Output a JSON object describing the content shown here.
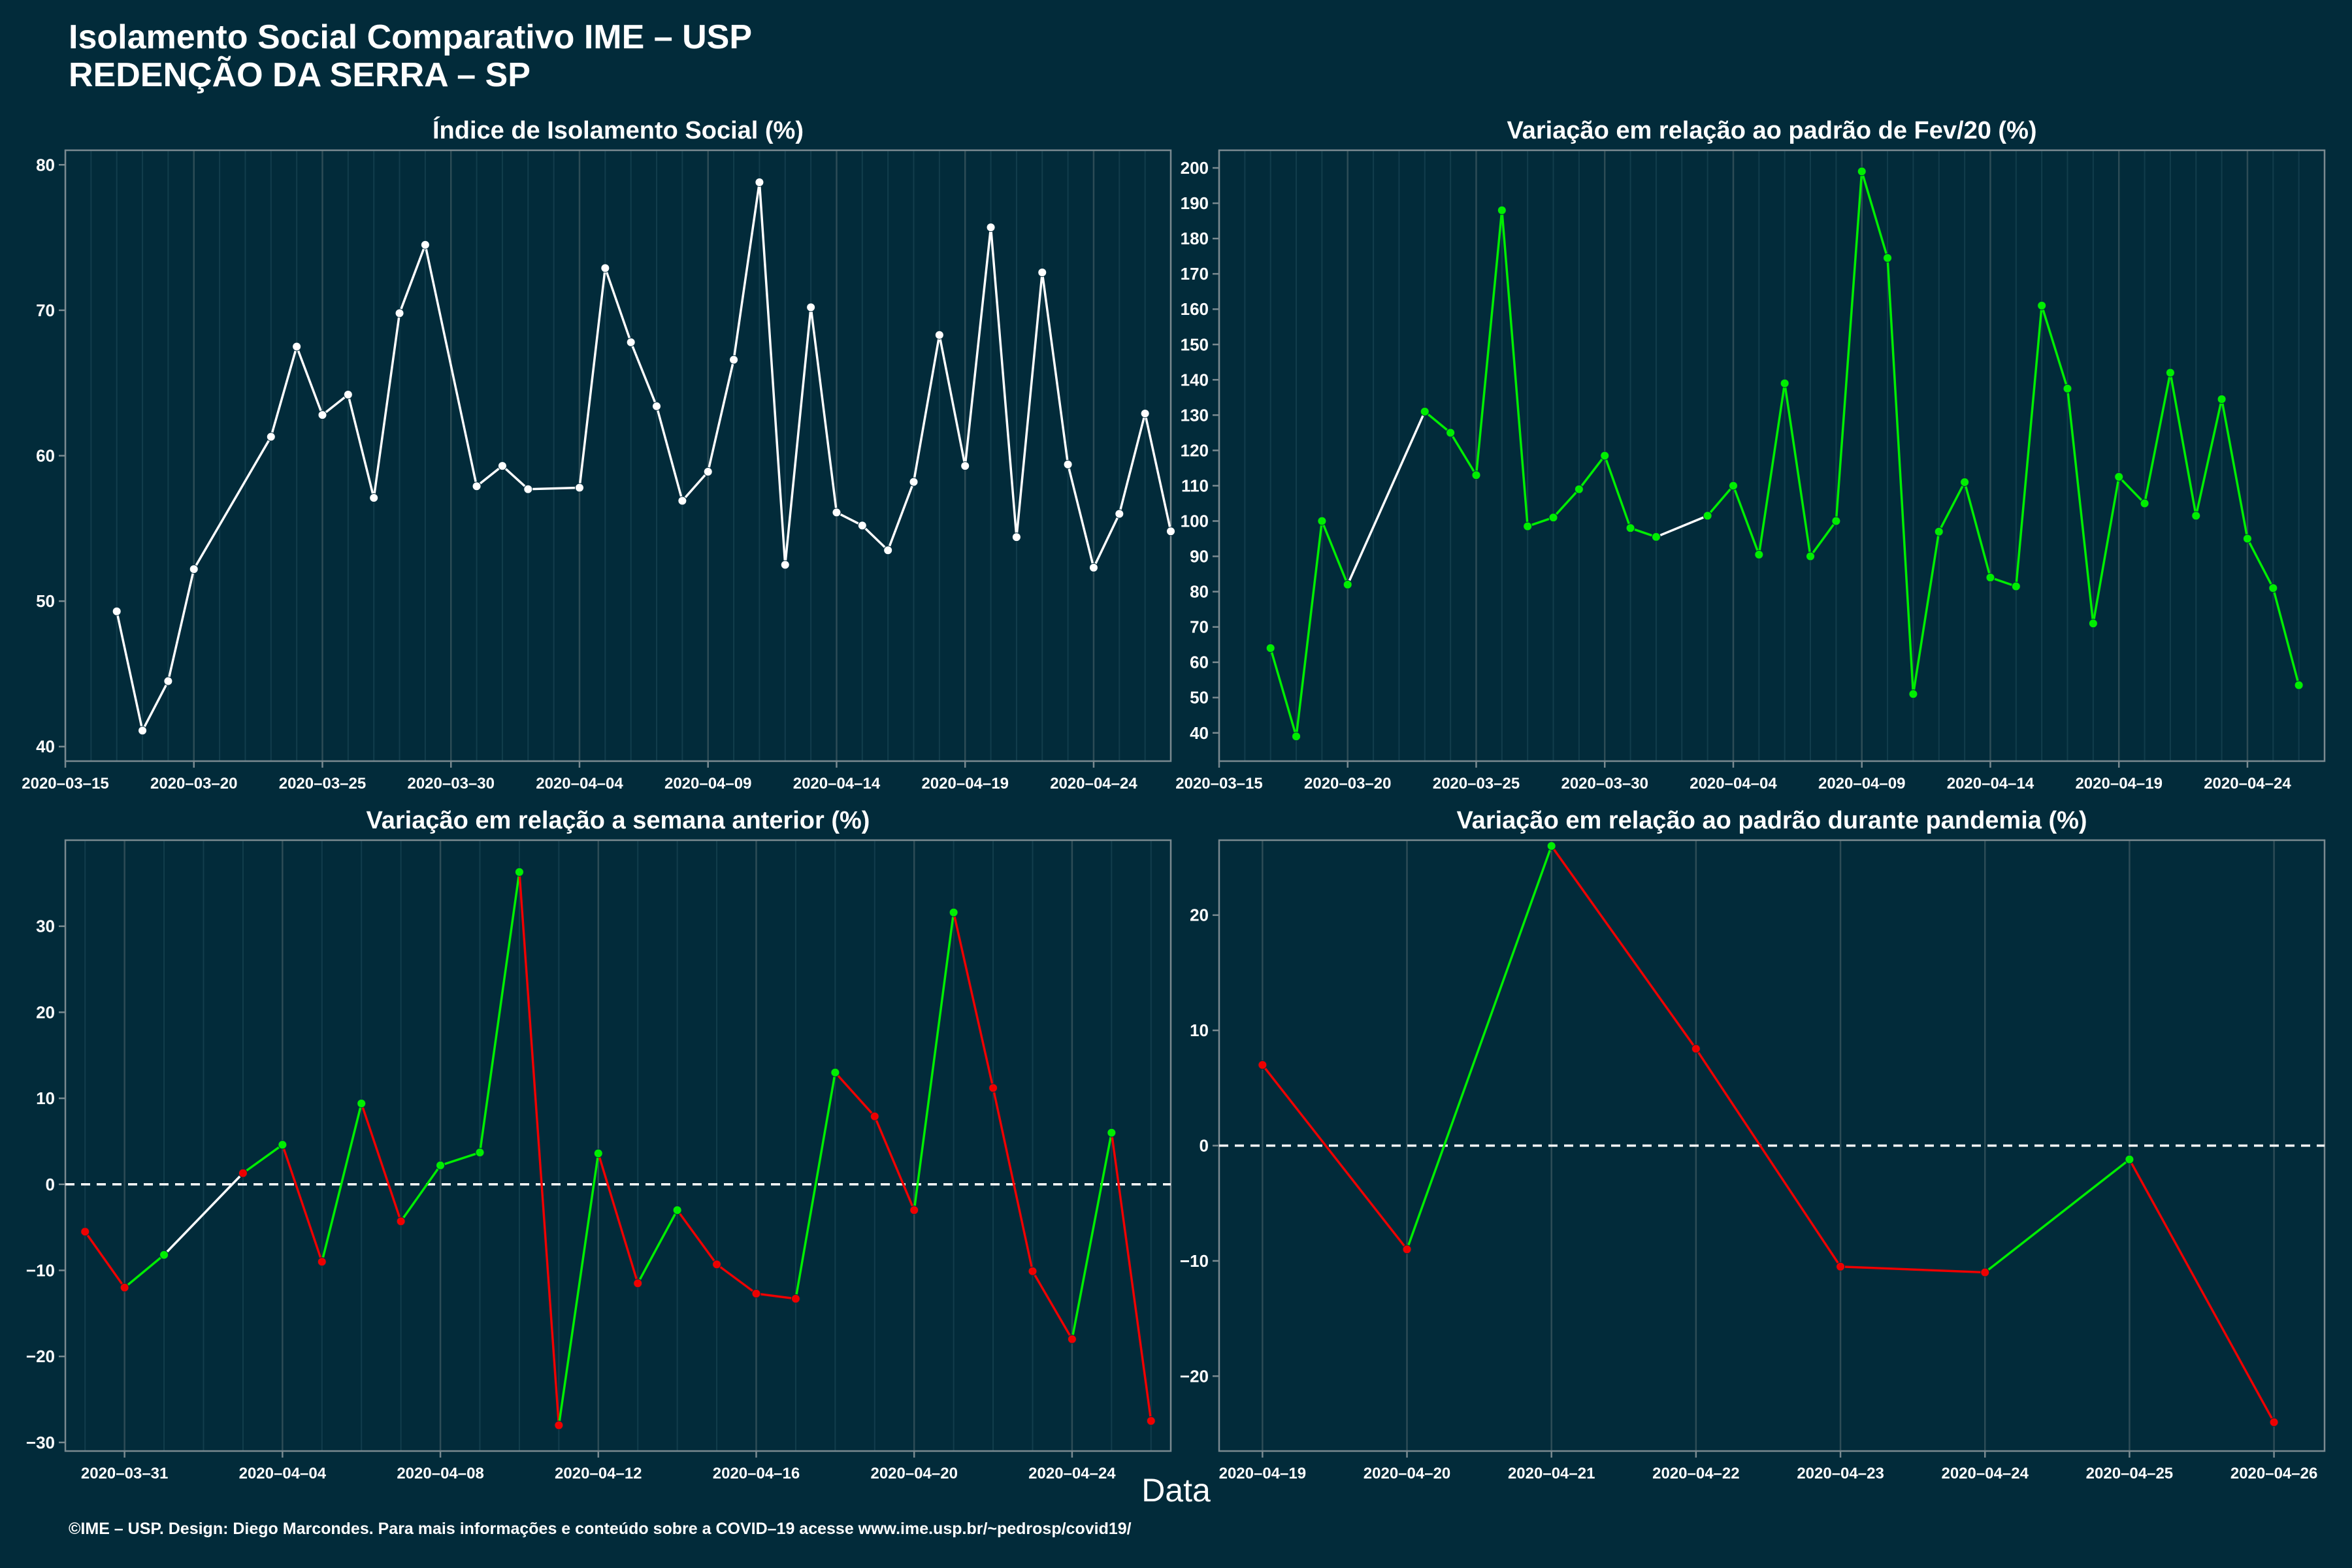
{
  "title": {
    "line1": "Isolamento Social Comparativo IME – USP",
    "line2": "REDENÇÃO DA SERRA – SP"
  },
  "footer": "©IME – USP. Design: Diego Marcondes. Para mais informações e conteúdo sobre a COVID–19 acesse www.ime.usp.br/~pedrosp/covid19/",
  "xlabel": "Data",
  "colors": {
    "background": "#022b3a",
    "white": "#ffffff",
    "green": "#00ee00",
    "red": "#ee0000",
    "grid": "#2d4c56"
  },
  "chart_data": [
    {
      "type": "line",
      "title": "Índice de Isolamento Social (%)",
      "xlim": [
        "2020-03-15",
        "2020-04-27"
      ],
      "ylim": [
        39,
        81
      ],
      "yticks": [
        40,
        50,
        60,
        70,
        80
      ],
      "xticks": [
        "2020-03-15",
        "2020-03-20",
        "2020-03-25",
        "2020-03-30",
        "2020-04-04",
        "2020-04-09",
        "2020-04-14",
        "2020-04-19",
        "2020-04-24"
      ],
      "color_mode": "white",
      "series": [
        {
          "points": [
            [
              "2020-03-17",
              49.3
            ],
            [
              "2020-03-18",
              41.1
            ],
            [
              "2020-03-19",
              44.5
            ],
            [
              "2020-03-20",
              52.2
            ],
            [
              "2020-03-23",
              61.3
            ],
            [
              "2020-03-24",
              67.5
            ],
            [
              "2020-03-25",
              62.8
            ],
            [
              "2020-03-26",
              64.2
            ],
            [
              "2020-03-27",
              57.1
            ],
            [
              "2020-03-28",
              69.8
            ],
            [
              "2020-03-29",
              74.5
            ],
            [
              "2020-03-31",
              57.9
            ],
            [
              "2020-04-01",
              59.3
            ],
            [
              "2020-04-02",
              57.7
            ],
            [
              "2020-04-04",
              57.8
            ],
            [
              "2020-04-05",
              72.9
            ],
            [
              "2020-04-06",
              67.8
            ],
            [
              "2020-04-07",
              63.4
            ],
            [
              "2020-04-08",
              56.9
            ],
            [
              "2020-04-09",
              58.9
            ],
            [
              "2020-04-10",
              66.6
            ],
            [
              "2020-04-11",
              78.8
            ],
            [
              "2020-04-12",
              52.5
            ],
            [
              "2020-04-13",
              70.2
            ],
            [
              "2020-04-14",
              56.1
            ],
            [
              "2020-04-15",
              55.2
            ],
            [
              "2020-04-16",
              53.5
            ],
            [
              "2020-04-17",
              58.2
            ],
            [
              "2020-04-18",
              68.3
            ],
            [
              "2020-04-19",
              59.3
            ],
            [
              "2020-04-20",
              75.7
            ],
            [
              "2020-04-21",
              54.4
            ],
            [
              "2020-04-22",
              72.6
            ],
            [
              "2020-04-23",
              59.4
            ],
            [
              "2020-04-24",
              52.3
            ],
            [
              "2020-04-25",
              56.0
            ],
            [
              "2020-04-26",
              62.9
            ],
            [
              "2020-04-27",
              54.8
            ]
          ]
        }
      ]
    },
    {
      "type": "line",
      "title": "Variação em relação ao padrão de Fev/20 (%)",
      "xlim": [
        "2020-03-15",
        "2020-04-27"
      ],
      "ylim": [
        32,
        205
      ],
      "yticks": [
        40,
        50,
        60,
        70,
        80,
        90,
        100,
        110,
        120,
        130,
        140,
        150,
        160,
        170,
        180,
        190,
        200
      ],
      "xticks": [
        "2020-03-15",
        "2020-03-20",
        "2020-03-25",
        "2020-03-30",
        "2020-04-04",
        "2020-04-09",
        "2020-04-14",
        "2020-04-19",
        "2020-04-24"
      ],
      "color_mode": "green",
      "series": [
        {
          "points": [
            [
              "2020-03-17",
              64
            ],
            [
              "2020-03-18",
              39
            ],
            [
              "2020-03-19",
              100
            ],
            [
              "2020-03-20",
              82
            ],
            [
              "2020-03-23",
              131
            ],
            [
              "2020-03-24",
              125
            ],
            [
              "2020-03-25",
              113
            ],
            [
              "2020-03-26",
              188
            ],
            [
              "2020-03-27",
              98.5
            ],
            [
              "2020-03-28",
              101
            ],
            [
              "2020-03-29",
              109
            ],
            [
              "2020-03-30",
              118.5
            ],
            [
              "2020-03-31",
              98
            ],
            [
              "2020-04-01",
              95.5
            ],
            [
              "2020-04-03",
              101.5
            ],
            [
              "2020-04-04",
              110
            ],
            [
              "2020-04-05",
              90.5
            ],
            [
              "2020-04-06",
              139
            ],
            [
              "2020-04-07",
              90
            ],
            [
              "2020-04-08",
              100
            ],
            [
              "2020-04-09",
              199
            ],
            [
              "2020-04-10",
              174.5
            ],
            [
              "2020-04-11",
              51
            ],
            [
              "2020-04-12",
              97
            ],
            [
              "2020-04-13",
              111
            ],
            [
              "2020-04-14",
              84
            ],
            [
              "2020-04-15",
              81.5
            ],
            [
              "2020-04-16",
              161
            ],
            [
              "2020-04-17",
              137.5
            ],
            [
              "2020-04-18",
              71
            ],
            [
              "2020-04-19",
              112.5
            ],
            [
              "2020-04-20",
              105
            ],
            [
              "2020-04-21",
              142
            ],
            [
              "2020-04-22",
              101.5
            ],
            [
              "2020-04-23",
              134.5
            ],
            [
              "2020-04-24",
              95
            ],
            [
              "2020-04-25",
              81
            ],
            [
              "2020-04-26",
              53.5
            ]
          ]
        }
      ]
    },
    {
      "type": "line",
      "title": "Variação em relação a semana anterior (%)",
      "xlim": [
        "2020-03-29.5",
        "2020-04-26.5"
      ],
      "ylim": [
        -31,
        40
      ],
      "yticks": [
        -30,
        -20,
        -10,
        0,
        10,
        20,
        30
      ],
      "xticks": [
        "2020-03-31",
        "2020-04-04",
        "2020-04-08",
        "2020-04-12",
        "2020-04-16",
        "2020-04-20",
        "2020-04-24"
      ],
      "zero_line": true,
      "color_mode": "sign",
      "series": [
        {
          "points": [
            [
              "2020-03-30",
              -5.5
            ],
            [
              "2020-03-31",
              -12
            ],
            [
              "2020-04-01",
              -8.2
            ],
            [
              "2020-04-03",
              1.3
            ],
            [
              "2020-04-04",
              4.6
            ],
            [
              "2020-04-05",
              -9
            ],
            [
              "2020-04-06",
              9.4
            ],
            [
              "2020-04-07",
              -4.3
            ],
            [
              "2020-04-08",
              2.2
            ],
            [
              "2020-04-09",
              3.7
            ],
            [
              "2020-04-10",
              36.3
            ],
            [
              "2020-04-11",
              -28
            ],
            [
              "2020-04-12",
              3.6
            ],
            [
              "2020-04-13",
              -11.5
            ],
            [
              "2020-04-14",
              -3
            ],
            [
              "2020-04-15",
              -9.3
            ],
            [
              "2020-04-16",
              -12.7
            ],
            [
              "2020-04-17",
              -13.3
            ],
            [
              "2020-04-18",
              13
            ],
            [
              "2020-04-19",
              7.9
            ],
            [
              "2020-04-20",
              -3
            ],
            [
              "2020-04-21",
              31.6
            ],
            [
              "2020-04-22",
              11.2
            ],
            [
              "2020-04-23",
              -10.1
            ],
            [
              "2020-04-24",
              -18
            ],
            [
              "2020-04-25",
              6
            ],
            [
              "2020-04-26",
              -27.5
            ]
          ]
        }
      ]
    },
    {
      "type": "line",
      "title": "Variação em relação ao padrão durante pandemia (%)",
      "xlim": [
        "2020-04-18.7",
        "2020-04-26.35"
      ],
      "ylim": [
        -26.5,
        26.5
      ],
      "yticks": [
        -20,
        -10,
        0,
        10,
        20
      ],
      "xticks": [
        "2020-04-19",
        "2020-04-20",
        "2020-04-21",
        "2020-04-22",
        "2020-04-23",
        "2020-04-24",
        "2020-04-25",
        "2020-04-26"
      ],
      "zero_line": true,
      "color_mode": "sign",
      "series": [
        {
          "points": [
            [
              "2020-04-19",
              7
            ],
            [
              "2020-04-20",
              -9
            ],
            [
              "2020-04-21",
              26
            ],
            [
              "2020-04-22",
              8.4
            ],
            [
              "2020-04-23",
              -10.5
            ],
            [
              "2020-04-24",
              -11
            ],
            [
              "2020-04-25",
              -1.2
            ],
            [
              "2020-04-26",
              -24
            ]
          ]
        }
      ]
    }
  ]
}
